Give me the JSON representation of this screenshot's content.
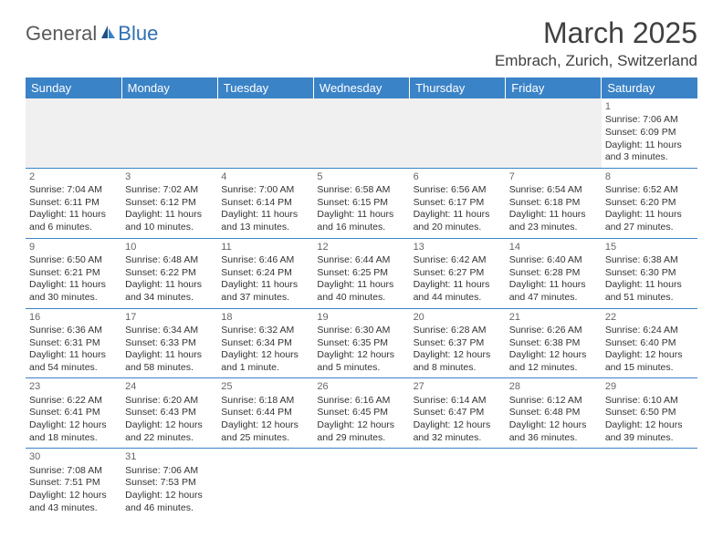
{
  "logo": {
    "text_gray": "General",
    "text_blue": "Blue"
  },
  "header": {
    "month_title": "March 2025",
    "location": "Embrach, Zurich, Switzerland"
  },
  "colors": {
    "header_bg": "#3b83c7",
    "header_text": "#ffffff",
    "grid_line": "#3b83c7",
    "text": "#333333",
    "logo_gray": "#5a5a5a",
    "logo_blue": "#2f6fb3",
    "empty_fill": "#f0f0f0"
  },
  "weekdays": [
    "Sunday",
    "Monday",
    "Tuesday",
    "Wednesday",
    "Thursday",
    "Friday",
    "Saturday"
  ],
  "weeks": [
    [
      null,
      null,
      null,
      null,
      null,
      null,
      {
        "n": "1",
        "sr": "Sunrise: 7:06 AM",
        "ss": "Sunset: 6:09 PM",
        "dl": "Daylight: 11 hours and 3 minutes."
      }
    ],
    [
      {
        "n": "2",
        "sr": "Sunrise: 7:04 AM",
        "ss": "Sunset: 6:11 PM",
        "dl": "Daylight: 11 hours and 6 minutes."
      },
      {
        "n": "3",
        "sr": "Sunrise: 7:02 AM",
        "ss": "Sunset: 6:12 PM",
        "dl": "Daylight: 11 hours and 10 minutes."
      },
      {
        "n": "4",
        "sr": "Sunrise: 7:00 AM",
        "ss": "Sunset: 6:14 PM",
        "dl": "Daylight: 11 hours and 13 minutes."
      },
      {
        "n": "5",
        "sr": "Sunrise: 6:58 AM",
        "ss": "Sunset: 6:15 PM",
        "dl": "Daylight: 11 hours and 16 minutes."
      },
      {
        "n": "6",
        "sr": "Sunrise: 6:56 AM",
        "ss": "Sunset: 6:17 PM",
        "dl": "Daylight: 11 hours and 20 minutes."
      },
      {
        "n": "7",
        "sr": "Sunrise: 6:54 AM",
        "ss": "Sunset: 6:18 PM",
        "dl": "Daylight: 11 hours and 23 minutes."
      },
      {
        "n": "8",
        "sr": "Sunrise: 6:52 AM",
        "ss": "Sunset: 6:20 PM",
        "dl": "Daylight: 11 hours and 27 minutes."
      }
    ],
    [
      {
        "n": "9",
        "sr": "Sunrise: 6:50 AM",
        "ss": "Sunset: 6:21 PM",
        "dl": "Daylight: 11 hours and 30 minutes."
      },
      {
        "n": "10",
        "sr": "Sunrise: 6:48 AM",
        "ss": "Sunset: 6:22 PM",
        "dl": "Daylight: 11 hours and 34 minutes."
      },
      {
        "n": "11",
        "sr": "Sunrise: 6:46 AM",
        "ss": "Sunset: 6:24 PM",
        "dl": "Daylight: 11 hours and 37 minutes."
      },
      {
        "n": "12",
        "sr": "Sunrise: 6:44 AM",
        "ss": "Sunset: 6:25 PM",
        "dl": "Daylight: 11 hours and 40 minutes."
      },
      {
        "n": "13",
        "sr": "Sunrise: 6:42 AM",
        "ss": "Sunset: 6:27 PM",
        "dl": "Daylight: 11 hours and 44 minutes."
      },
      {
        "n": "14",
        "sr": "Sunrise: 6:40 AM",
        "ss": "Sunset: 6:28 PM",
        "dl": "Daylight: 11 hours and 47 minutes."
      },
      {
        "n": "15",
        "sr": "Sunrise: 6:38 AM",
        "ss": "Sunset: 6:30 PM",
        "dl": "Daylight: 11 hours and 51 minutes."
      }
    ],
    [
      {
        "n": "16",
        "sr": "Sunrise: 6:36 AM",
        "ss": "Sunset: 6:31 PM",
        "dl": "Daylight: 11 hours and 54 minutes."
      },
      {
        "n": "17",
        "sr": "Sunrise: 6:34 AM",
        "ss": "Sunset: 6:33 PM",
        "dl": "Daylight: 11 hours and 58 minutes."
      },
      {
        "n": "18",
        "sr": "Sunrise: 6:32 AM",
        "ss": "Sunset: 6:34 PM",
        "dl": "Daylight: 12 hours and 1 minute."
      },
      {
        "n": "19",
        "sr": "Sunrise: 6:30 AM",
        "ss": "Sunset: 6:35 PM",
        "dl": "Daylight: 12 hours and 5 minutes."
      },
      {
        "n": "20",
        "sr": "Sunrise: 6:28 AM",
        "ss": "Sunset: 6:37 PM",
        "dl": "Daylight: 12 hours and 8 minutes."
      },
      {
        "n": "21",
        "sr": "Sunrise: 6:26 AM",
        "ss": "Sunset: 6:38 PM",
        "dl": "Daylight: 12 hours and 12 minutes."
      },
      {
        "n": "22",
        "sr": "Sunrise: 6:24 AM",
        "ss": "Sunset: 6:40 PM",
        "dl": "Daylight: 12 hours and 15 minutes."
      }
    ],
    [
      {
        "n": "23",
        "sr": "Sunrise: 6:22 AM",
        "ss": "Sunset: 6:41 PM",
        "dl": "Daylight: 12 hours and 18 minutes."
      },
      {
        "n": "24",
        "sr": "Sunrise: 6:20 AM",
        "ss": "Sunset: 6:43 PM",
        "dl": "Daylight: 12 hours and 22 minutes."
      },
      {
        "n": "25",
        "sr": "Sunrise: 6:18 AM",
        "ss": "Sunset: 6:44 PM",
        "dl": "Daylight: 12 hours and 25 minutes."
      },
      {
        "n": "26",
        "sr": "Sunrise: 6:16 AM",
        "ss": "Sunset: 6:45 PM",
        "dl": "Daylight: 12 hours and 29 minutes."
      },
      {
        "n": "27",
        "sr": "Sunrise: 6:14 AM",
        "ss": "Sunset: 6:47 PM",
        "dl": "Daylight: 12 hours and 32 minutes."
      },
      {
        "n": "28",
        "sr": "Sunrise: 6:12 AM",
        "ss": "Sunset: 6:48 PM",
        "dl": "Daylight: 12 hours and 36 minutes."
      },
      {
        "n": "29",
        "sr": "Sunrise: 6:10 AM",
        "ss": "Sunset: 6:50 PM",
        "dl": "Daylight: 12 hours and 39 minutes."
      }
    ],
    [
      {
        "n": "30",
        "sr": "Sunrise: 7:08 AM",
        "ss": "Sunset: 7:51 PM",
        "dl": "Daylight: 12 hours and 43 minutes."
      },
      {
        "n": "31",
        "sr": "Sunrise: 7:06 AM",
        "ss": "Sunset: 7:53 PM",
        "dl": "Daylight: 12 hours and 46 minutes."
      },
      null,
      null,
      null,
      null,
      null
    ]
  ]
}
